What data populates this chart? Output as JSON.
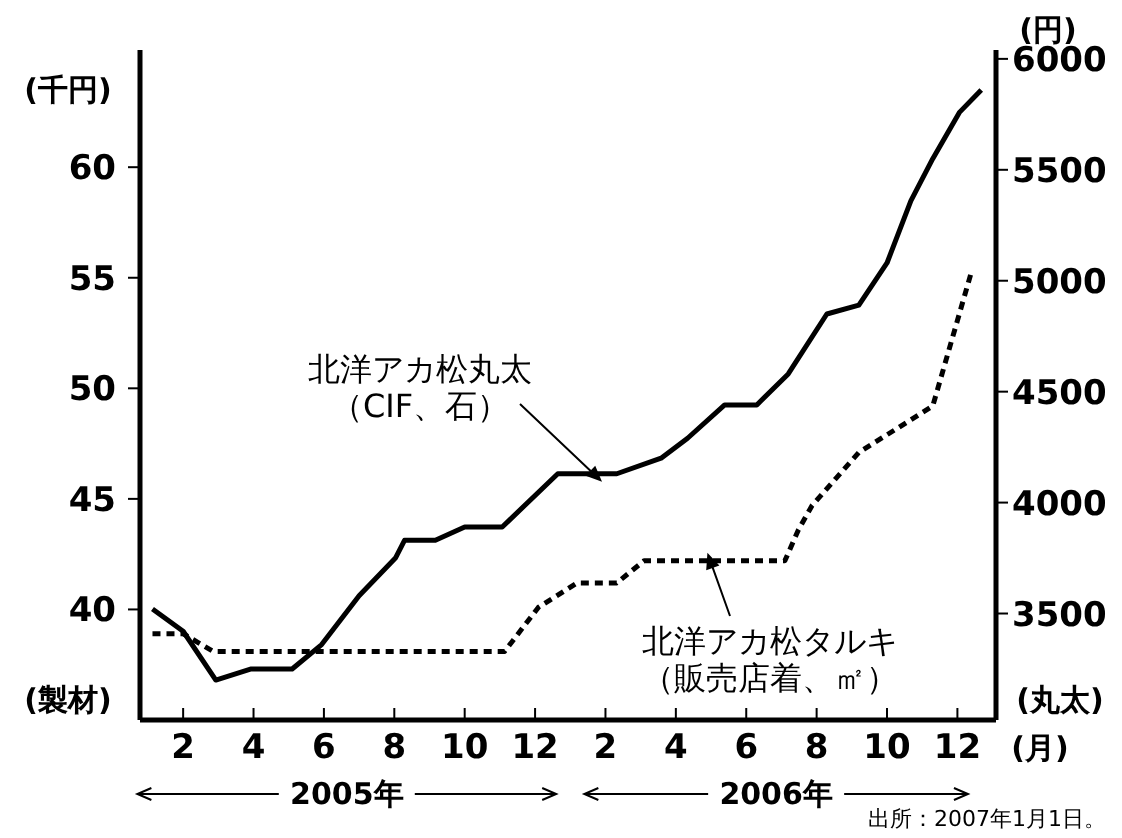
{
  "chart_data": {
    "type": "line",
    "ylabel": "(千円)",
    "y2label": "(円)",
    "xlabel": "(月)",
    "annotations": [
      "(製材)",
      "(丸太)",
      "2005年",
      "2006年",
      "出所：2007年1月1日。"
    ],
    "xlim": [
      "2004-12-25",
      "2007-01-04"
    ],
    "ylim": [
      35,
      65.3
    ],
    "y2lim": [
      3020,
      6040
    ],
    "xticks": [
      {
        "value": "2005-02-01",
        "label": "2"
      },
      {
        "value": "2005-04-01",
        "label": "4"
      },
      {
        "value": "2005-06-01",
        "label": "6"
      },
      {
        "value": "2005-08-01",
        "label": "8"
      },
      {
        "value": "2005-10-01",
        "label": "10"
      },
      {
        "value": "2005-12-01",
        "label": "12"
      },
      {
        "value": "2006-02-01",
        "label": "2"
      },
      {
        "value": "2006-04-01",
        "label": "4"
      },
      {
        "value": "2006-06-01",
        "label": "6"
      },
      {
        "value": "2006-08-01",
        "label": "8"
      },
      {
        "value": "2006-10-01",
        "label": "10"
      },
      {
        "value": "2006-12-01",
        "label": "12"
      }
    ],
    "yticks": [
      40,
      45,
      50,
      55,
      60
    ],
    "y2ticks": [
      3500,
      4000,
      4500,
      5000,
      5500,
      6000
    ],
    "grid": false,
    "series": [
      {
        "name": "北洋アカ松丸太（CIF、石）",
        "axis": "y2",
        "color": "#000000",
        "line_style": "solid",
        "x": [
          "2005-01-05",
          "2005-02-01",
          "2005-02-27",
          "2005-03-30",
          "2005-05-04",
          "2005-05-30",
          "2005-07-01",
          "2005-08-02",
          "2005-08-10",
          "2005-09-06",
          "2005-10-01",
          "2005-11-03",
          "2005-12-21",
          "2006-02-10",
          "2006-03-19",
          "2006-04-11",
          "2006-05-13",
          "2006-06-10",
          "2006-07-07",
          "2006-08-10",
          "2006-09-07",
          "2006-10-01",
          "2006-10-22",
          "2006-11-10",
          "2006-12-03",
          "2006-12-22"
        ],
        "values": [
          3520,
          3420,
          3200,
          3250,
          3250,
          3360,
          3580,
          3750,
          3830,
          3830,
          3890,
          3890,
          4130,
          4130,
          4200,
          4290,
          4440,
          4440,
          4580,
          4850,
          4890,
          5080,
          5360,
          5550,
          5760,
          5860
        ]
      },
      {
        "name": "北洋アカ松タルキ（販売店着、㎡）",
        "axis": "y",
        "color": "#000000",
        "line_style": "dashed",
        "x": [
          "2005-01-05",
          "2005-02-01",
          "2005-02-25",
          "2005-11-05",
          "2005-12-04",
          "2006-01-07",
          "2006-02-10",
          "2006-03-04",
          "2006-07-04",
          "2006-07-16",
          "2006-07-28",
          "2006-09-07",
          "2006-11-10",
          "2006-12-13"
        ],
        "values": [
          38.9,
          38.9,
          38.1,
          38.1,
          40.1,
          41.2,
          41.2,
          42.2,
          42.2,
          43.6,
          44.7,
          47.1,
          49.2,
          55.2
        ]
      }
    ]
  }
}
